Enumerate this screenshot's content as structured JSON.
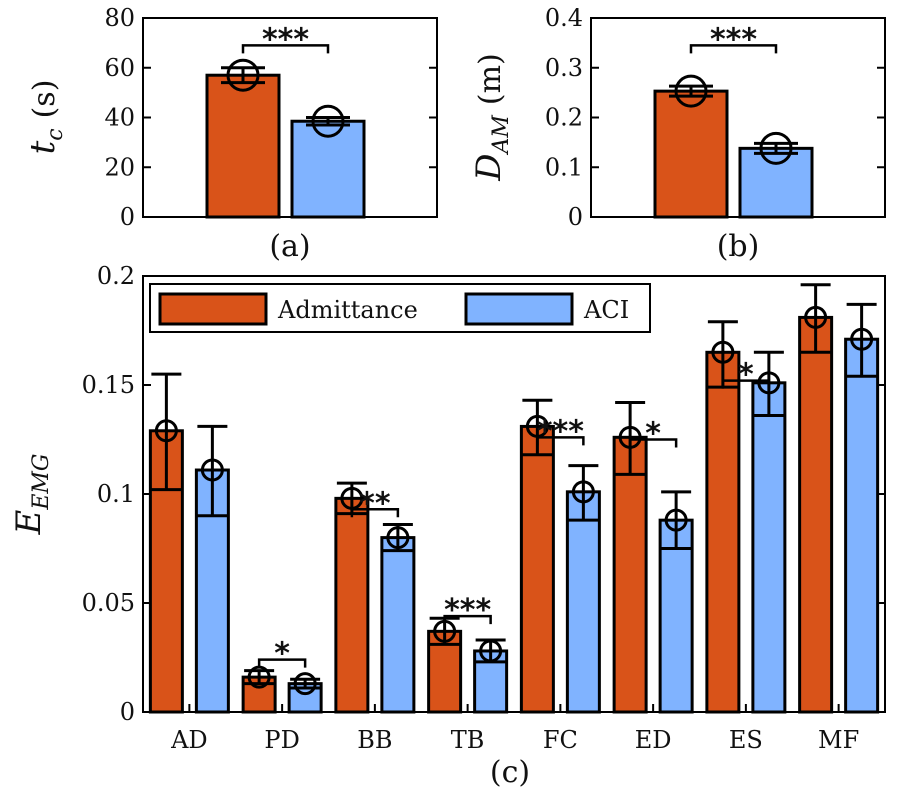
{
  "colors": {
    "admittance": "#d95319",
    "aci": "#80b3ff",
    "stroke": "#000000"
  },
  "chart_data": [
    {
      "id": "a",
      "type": "bar",
      "panel_label": "(a)",
      "ylabel_main": "t",
      "ylabel_sub": "c",
      "ylabel_unit": "(s)",
      "ylim": [
        0,
        80
      ],
      "yticks": [
        0,
        20,
        40,
        60,
        80
      ],
      "ytick_labels": [
        "0",
        "20",
        "40",
        "60",
        "80"
      ],
      "series": [
        {
          "name": "Admittance",
          "value": 57,
          "err_low": 54,
          "err_high": 60
        },
        {
          "name": "ACI",
          "value": 38.5,
          "err_low": 37,
          "err_high": 40
        }
      ],
      "significance": [
        {
          "label": "***",
          "level": 69
        }
      ]
    },
    {
      "id": "b",
      "type": "bar",
      "panel_label": "(b)",
      "ylabel_main": "D",
      "ylabel_sub": "AM",
      "ylabel_unit": "(m)",
      "ylim": [
        0,
        0.4
      ],
      "yticks": [
        0,
        0.1,
        0.2,
        0.3,
        0.4
      ],
      "ytick_labels": [
        "0",
        "0.1",
        "0.2",
        "0.3",
        "0.4"
      ],
      "series": [
        {
          "name": "Admittance",
          "value": 0.253,
          "err_low": 0.243,
          "err_high": 0.263
        },
        {
          "name": "ACI",
          "value": 0.138,
          "err_low": 0.128,
          "err_high": 0.148
        }
      ],
      "significance": [
        {
          "label": "***",
          "level": 0.345
        }
      ]
    },
    {
      "id": "c",
      "type": "bar",
      "panel_label": "(c)",
      "ylabel_main": "E",
      "ylabel_sub": "EMG",
      "ylim": [
        0,
        0.2
      ],
      "yticks": [
        0,
        0.05,
        0.1,
        0.15,
        0.2
      ],
      "ytick_labels": [
        "0",
        "0.05",
        "0.1",
        "0.15",
        "0.2"
      ],
      "categories": [
        "AD",
        "PD",
        "BB",
        "TB",
        "FC",
        "ED",
        "ES",
        "MF"
      ],
      "legend": [
        "Admittance",
        "ACI"
      ],
      "series": [
        {
          "name": "Admittance",
          "values": [
            0.129,
            0.016,
            0.098,
            0.037,
            0.131,
            0.126,
            0.165,
            0.181
          ],
          "err_low": [
            0.102,
            0.013,
            0.091,
            0.031,
            0.118,
            0.109,
            0.149,
            0.165
          ],
          "err_high": [
            0.155,
            0.019,
            0.105,
            0.043,
            0.143,
            0.142,
            0.179,
            0.196
          ]
        },
        {
          "name": "ACI",
          "values": [
            0.111,
            0.013,
            0.08,
            0.028,
            0.101,
            0.088,
            0.151,
            0.171
          ],
          "err_low": [
            0.09,
            0.011,
            0.074,
            0.023,
            0.088,
            0.075,
            0.136,
            0.154
          ],
          "err_high": [
            0.131,
            0.015,
            0.086,
            0.033,
            0.113,
            0.101,
            0.165,
            0.187
          ]
        }
      ],
      "significance": [
        {
          "category": "PD",
          "label": "*",
          "level": 0.024
        },
        {
          "category": "BB",
          "label": "**",
          "level": 0.093
        },
        {
          "category": "TB",
          "label": "***",
          "level": 0.044
        },
        {
          "category": "FC",
          "label": "***",
          "level": 0.126
        },
        {
          "category": "ED",
          "label": "*",
          "level": 0.125
        },
        {
          "category": "ES",
          "label": "*",
          "level": 0.152
        }
      ]
    }
  ]
}
